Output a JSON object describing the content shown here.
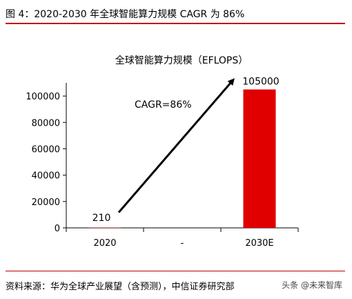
{
  "figure": {
    "label": "图 4：2020-2030 年全球智能算力规模 CAGR 为 86%",
    "source": "资料来源：华为全球产业展望（含预测），中信证券研究部",
    "watermark": "头条 @未来智库"
  },
  "chart_data": {
    "type": "bar",
    "title": "全球智能算力规模（EFLOPS）",
    "categories": [
      "2020",
      "-",
      "2030E"
    ],
    "values": [
      210,
      null,
      105000
    ],
    "data_labels": [
      "210",
      "",
      "105000"
    ],
    "ylim": [
      0,
      110000
    ],
    "yticks": [
      0,
      20000,
      40000,
      60000,
      80000,
      100000
    ],
    "ytick_labels": [
      "0",
      "20000",
      "40000",
      "60000",
      "80000",
      "100000"
    ],
    "bar_color": "#e00000",
    "annotation": {
      "text": "CAGR=86%",
      "arrow_color": "#000000"
    },
    "grid": false,
    "legend": "none"
  }
}
